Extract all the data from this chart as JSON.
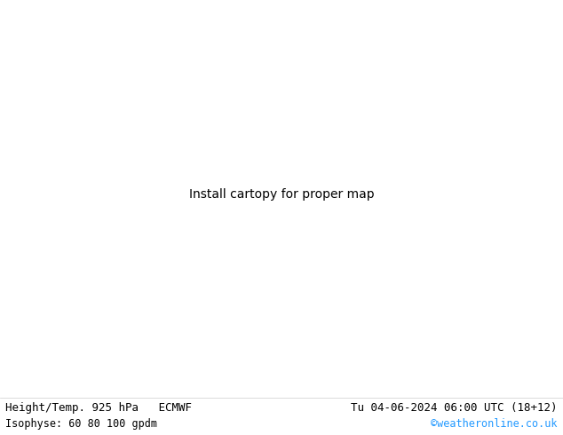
{
  "title_left": "Height/Temp. 925 hPa   ECMWF",
  "title_right": "Tu 04-06-2024 06:00 UTC (18+12)",
  "subtitle_left": "Isophyse: 60 80 100 gpdm",
  "subtitle_right": "©weatheronline.co.uk",
  "subtitle_right_color": "#2299ff",
  "bg_color": "#ffffff",
  "bottom_bar_color": "#ffffff",
  "text_color": "#000000",
  "land_color": "#bbee99",
  "sea_color": "#dddddd",
  "border_color": "#888888",
  "coast_color": "#888888",
  "figwidth": 6.34,
  "figheight": 4.9,
  "dpi": 100,
  "font_size_main": 9,
  "font_size_sub": 8.5,
  "font_family": "monospace",
  "extent": [
    -45,
    55,
    25,
    75
  ],
  "contour_colors": [
    "#ff00ff",
    "#cc00cc",
    "#ff0000",
    "#ff6600",
    "#ffcc00",
    "#00cc00",
    "#00cccc",
    "#0000ff",
    "#6600cc",
    "#cc6600",
    "#ff66cc",
    "#66ffcc",
    "#ccff00",
    "#00ffff",
    "#ff3300",
    "#3300ff",
    "#00ff66",
    "#ff9900",
    "#9900ff",
    "#00ff00"
  ],
  "gray_contour_color": "#999999"
}
